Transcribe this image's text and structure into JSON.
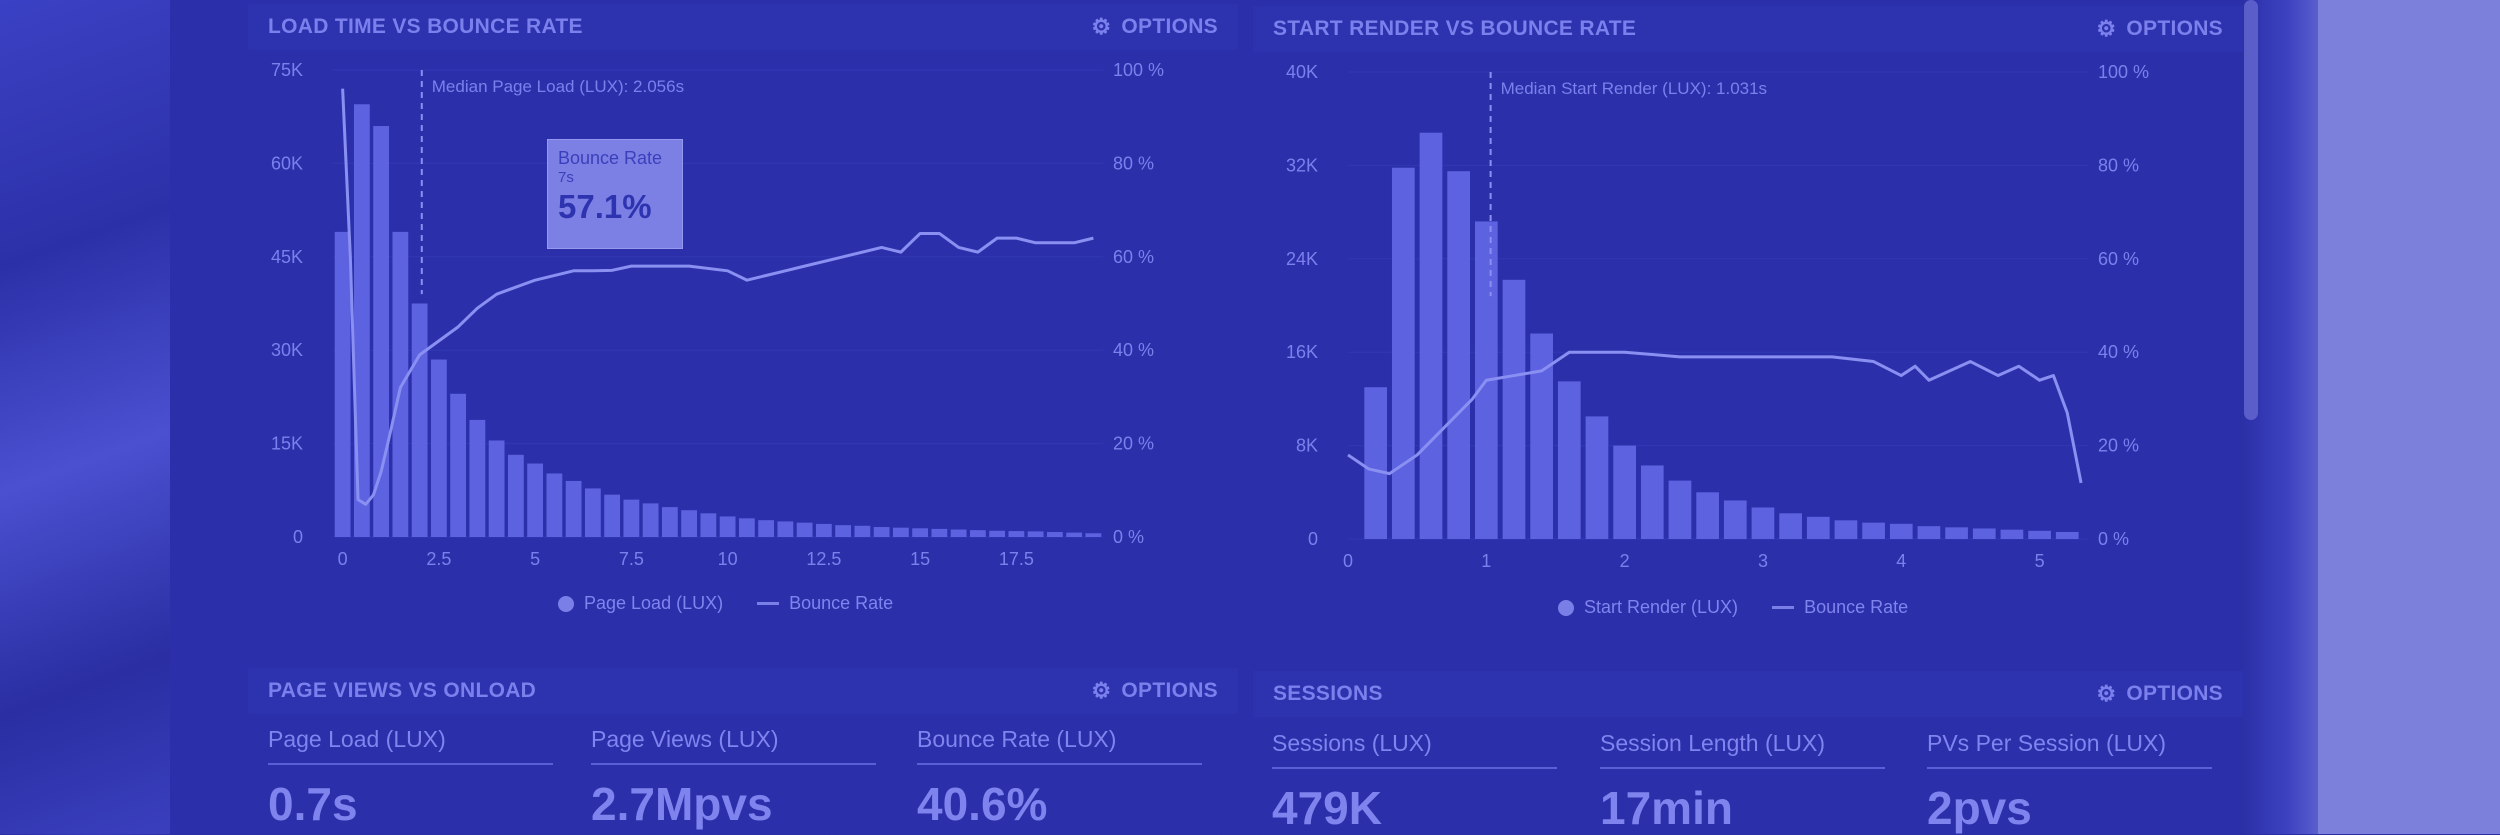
{
  "panels": {
    "load_time": {
      "title": "LOAD TIME VS BOUNCE RATE",
      "options_label": "OPTIONS",
      "median_label": "Median Page Load (LUX): 2.056s",
      "legend": [
        "Page Load (LUX)",
        "Bounce Rate"
      ],
      "tooltip": {
        "title": "Bounce Rate",
        "x": "7s",
        "value": "57.1%"
      }
    },
    "start_render": {
      "title": "START RENDER VS BOUNCE RATE",
      "options_label": "OPTIONS",
      "median_label": "Median Start Render (LUX): 1.031s",
      "legend": [
        "Start Render (LUX)",
        "Bounce Rate"
      ]
    },
    "page_views": {
      "title": "PAGE VIEWS VS ONLOAD",
      "options_label": "OPTIONS",
      "stats": [
        {
          "label": "Page Load (LUX)",
          "value": "0.7s"
        },
        {
          "label": "Page Views (LUX)",
          "value": "2.7Mpvs"
        },
        {
          "label": "Bounce Rate (LUX)",
          "value": "40.6%"
        }
      ]
    },
    "sessions": {
      "title": "SESSIONS",
      "options_label": "OPTIONS",
      "stats": [
        {
          "label": "Sessions (LUX)",
          "value": "479K"
        },
        {
          "label": "Session Length (LUX)",
          "value": "17min"
        },
        {
          "label": "PVs Per Session (LUX)",
          "value": "2pvs"
        }
      ]
    }
  },
  "icons": {
    "options": "gear-icon"
  },
  "colors": {
    "bar": "#5d62e0",
    "line": "#8a8ff2",
    "text": "#7b80ec",
    "background": "#2b30aa"
  },
  "chart_data": [
    {
      "type": "bar",
      "title": "LOAD TIME VS BOUNCE RATE",
      "x_ticks": [
        "0",
        "2.5",
        "5",
        "7.5",
        "10",
        "12.5",
        "15",
        "17.5"
      ],
      "y_left_ticks": [
        "0",
        "15K",
        "30K",
        "45K",
        "60K",
        "75K"
      ],
      "y_right_ticks": [
        "0 %",
        "20 %",
        "40 %",
        "60 %",
        "80 %",
        "100 %"
      ],
      "ylim_left": [
        0,
        75000
      ],
      "ylim_right": [
        0,
        100
      ],
      "xlim": [
        -0.25,
        19.75
      ],
      "median_x": 2.056,
      "bin_width": 0.5,
      "series": [
        {
          "name": "Page Load (LUX)",
          "kind": "bar",
          "x": [
            0,
            0.5,
            1,
            1.5,
            2,
            2.5,
            3,
            3.5,
            4,
            4.5,
            5,
            5.5,
            6,
            6.5,
            7,
            7.5,
            8,
            8.5,
            9,
            9.5,
            10,
            10.5,
            11,
            11.5,
            12,
            12.5,
            13,
            13.5,
            14,
            14.5,
            15,
            15.5,
            16,
            16.5,
            17,
            17.5,
            18,
            18.5,
            19,
            19.5
          ],
          "values": [
            49000,
            69500,
            66000,
            49000,
            37500,
            28500,
            23000,
            18800,
            15500,
            13200,
            11800,
            10200,
            9000,
            7800,
            6800,
            6000,
            5400,
            4800,
            4300,
            3800,
            3300,
            3000,
            2700,
            2500,
            2300,
            2100,
            1900,
            1800,
            1600,
            1500,
            1400,
            1300,
            1200,
            1100,
            1000,
            950,
            900,
            800,
            700,
            600
          ]
        },
        {
          "name": "Bounce Rate",
          "kind": "line",
          "axis": "right",
          "x": [
            0,
            0.2,
            0.4,
            0.6,
            0.8,
            1,
            1.2,
            1.5,
            2,
            2.5,
            3,
            3.5,
            4,
            5,
            6,
            6.5,
            7,
            7.5,
            8,
            9,
            10,
            10.5,
            11,
            11.5,
            12,
            13,
            14,
            14.5,
            15,
            15.5,
            16,
            16.5,
            17,
            17.5,
            18,
            18.5,
            19,
            19.5
          ],
          "values": [
            96,
            60,
            8,
            7,
            9,
            14,
            21,
            32,
            39,
            42,
            45,
            49,
            52,
            55,
            57,
            57,
            57.1,
            58,
            58,
            58,
            57,
            55,
            56,
            57,
            58,
            60,
            62,
            61,
            65,
            65,
            62,
            61,
            64,
            64,
            63,
            63,
            63,
            64
          ]
        }
      ]
    },
    {
      "type": "bar",
      "title": "START RENDER VS BOUNCE RATE",
      "x_ticks": [
        "0",
        "1",
        "2",
        "3",
        "4",
        "5"
      ],
      "y_left_ticks": [
        "0",
        "8K",
        "16K",
        "24K",
        "32K",
        "40K"
      ],
      "y_right_ticks": [
        "0 %",
        "20 %",
        "40 %",
        "60 %",
        "80 %",
        "100 %"
      ],
      "ylim_left": [
        0,
        40000
      ],
      "ylim_right": [
        0,
        100
      ],
      "xlim": [
        0,
        5.35
      ],
      "median_x": 1.031,
      "bin_width": 0.2,
      "series": [
        {
          "name": "Start Render (LUX)",
          "kind": "bar",
          "x": [
            0.2,
            0.4,
            0.6,
            0.8,
            1,
            1.2,
            1.4,
            1.6,
            1.8,
            2,
            2.2,
            2.4,
            2.6,
            2.8,
            3,
            3.2,
            3.4,
            3.6,
            3.8,
            4,
            4.2,
            4.4,
            4.6,
            4.8,
            5,
            5.2
          ],
          "values": [
            13000,
            31800,
            34800,
            31500,
            27200,
            22200,
            17600,
            13500,
            10500,
            8000,
            6300,
            5000,
            4000,
            3300,
            2700,
            2200,
            1900,
            1600,
            1400,
            1300,
            1100,
            1000,
            900,
            800,
            700,
            600
          ]
        },
        {
          "name": "Bounce Rate",
          "kind": "line",
          "axis": "right",
          "x": [
            0,
            0.15,
            0.3,
            0.5,
            0.7,
            0.9,
            1,
            1.2,
            1.4,
            1.6,
            2,
            2.4,
            2.8,
            3.2,
            3.5,
            3.8,
            4,
            4.1,
            4.2,
            4.35,
            4.5,
            4.7,
            4.85,
            5,
            5.1,
            5.2,
            5.3
          ],
          "values": [
            18,
            15,
            14,
            18,
            24,
            30,
            34,
            35,
            36,
            40,
            40,
            39,
            39,
            39,
            39,
            38,
            35,
            37,
            34,
            36,
            38,
            35,
            37,
            34,
            35,
            27,
            12
          ]
        }
      ]
    }
  ]
}
